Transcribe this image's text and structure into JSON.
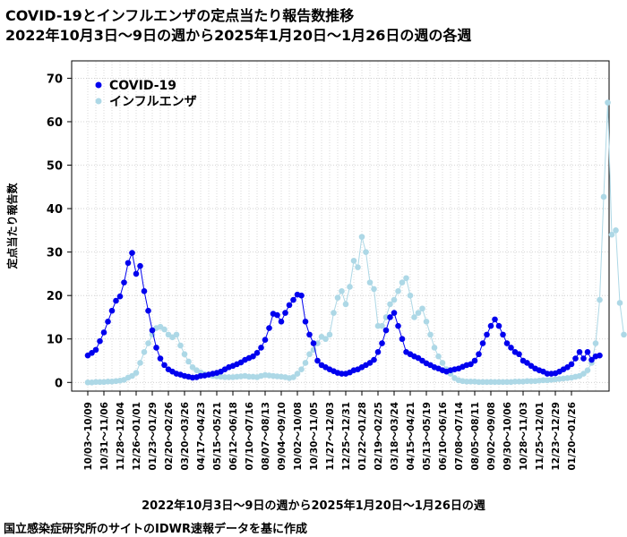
{
  "title_line1": "COVID-19とインフルエンザの定点当たり報告数推移",
  "title_line2": "2022年10月3日～9日の週から2025年1月20日～1月26日の週の各週",
  "source_note": "国立感染症研究所のサイトのIDWR速報データを基に作成",
  "colors": {
    "covid": "#0000ee",
    "flu": "#add8e6",
    "grid": "#c8c8c8"
  },
  "chart_data": {
    "type": "line",
    "xlabel": "2022年10月3日～9日の週から2025年1月20日～1月26日の週",
    "ylabel": "定点当たり報告数",
    "ylim": [
      -2,
      74
    ],
    "yticks": [
      0,
      10,
      20,
      30,
      40,
      50,
      60,
      70
    ],
    "grid": true,
    "legend_position": "top-left",
    "x_tick_labels": [
      "10/03～10/09",
      "10/31～11/06",
      "11/28～12/04",
      "12/26～01/01",
      "01/23～01/29",
      "02/20～02/26",
      "03/20～03/26",
      "04/17～04/23",
      "05/15～05/21",
      "06/12～06/18",
      "07/10～07/16",
      "08/07～08/13",
      "09/04～09/10",
      "10/02～10/08",
      "10/30～11/05",
      "11/27～12/03",
      "12/25～12/31",
      "01/22～01/28",
      "02/19～02/25",
      "03/18～03/24",
      "04/15～04/21",
      "05/13～05/19",
      "06/10～06/16",
      "07/08～07/14",
      "08/05～08/11",
      "09/02～09/08",
      "09/30～10/06",
      "10/28～11/03",
      "11/25～12/01",
      "12/23～12/29",
      "01/20～01/26"
    ],
    "series": [
      {
        "name": "COVID-19",
        "color": "#0000ee",
        "values": [
          6.2,
          6.8,
          7.5,
          9.5,
          11.5,
          14,
          16.5,
          18.8,
          19.8,
          23,
          27.5,
          29.8,
          25,
          26.8,
          21,
          16.5,
          12,
          8,
          5.5,
          4,
          3,
          2.5,
          2,
          1.8,
          1.5,
          1.3,
          1.1,
          1.2,
          1.5,
          1.6,
          1.8,
          2,
          2.2,
          2.5,
          3,
          3.5,
          3.8,
          4.2,
          4.6,
          5.2,
          5.6,
          6,
          6.8,
          8,
          9.8,
          12.5,
          15.8,
          15.5,
          14,
          16,
          17.8,
          19,
          20.2,
          20,
          14,
          11,
          9,
          5,
          4,
          3.5,
          3,
          2.6,
          2.2,
          2,
          2,
          2.3,
          2.8,
          3,
          3.5,
          4,
          4.5,
          5.2,
          7,
          9,
          12,
          15,
          16,
          13,
          10,
          7,
          6.5,
          6,
          5.6,
          5,
          4.4,
          4,
          3.5,
          3.2,
          2.8,
          2.5,
          2.8,
          3,
          3.2,
          3.6,
          4,
          4.2,
          5,
          6.5,
          9,
          11,
          13,
          14.5,
          13,
          11,
          9,
          8,
          7,
          6.5,
          5,
          4.5,
          3.8,
          3.2,
          2.8,
          2.5,
          2,
          2,
          2.1,
          2.5,
          3,
          3.5,
          4.2,
          5.5,
          7,
          5.5,
          7,
          5.2,
          6,
          6.2
        ]
      },
      {
        "name": "インフルエンザ",
        "color": "#add8e6",
        "values": [
          0,
          0,
          0.1,
          0.1,
          0.1,
          0.2,
          0.2,
          0.3,
          0.4,
          0.6,
          1.1,
          1.5,
          2.2,
          4.5,
          7,
          9,
          11,
          12.5,
          12.8,
          12.2,
          11,
          10.4,
          11,
          8.5,
          6.5,
          4.8,
          3.5,
          2.8,
          2.3,
          1.9,
          1.7,
          1.5,
          1.4,
          1.3,
          1.2,
          1.2,
          1.2,
          1.3,
          1.4,
          1.5,
          1.3,
          1.3,
          1.2,
          1.5,
          1.7,
          1.6,
          1.5,
          1.4,
          1.3,
          1.2,
          1,
          1.2,
          2,
          3,
          4.5,
          6.5,
          7.5,
          9,
          10.5,
          10,
          11,
          16,
          19.5,
          21,
          18,
          22,
          28,
          26.5,
          33.5,
          30,
          23,
          21.5,
          13,
          13,
          15,
          18,
          19,
          21,
          23,
          24,
          20,
          15,
          16,
          17,
          14,
          11,
          8,
          6,
          4.5,
          3,
          2,
          1,
          0.5,
          0.3,
          0.2,
          0.2,
          0.2,
          0.1,
          0.1,
          0.1,
          0.1,
          0.1,
          0.1,
          0.1,
          0.1,
          0.1,
          0.2,
          0.2,
          0.2,
          0.3,
          0.3,
          0.3,
          0.4,
          0.5,
          0.5,
          0.6,
          0.7,
          0.8,
          0.9,
          1,
          1.1,
          1.3,
          1.5,
          2,
          2.8,
          4.5,
          9,
          19,
          42.7,
          64.4,
          34,
          35,
          18.3,
          11
        ]
      }
    ]
  }
}
